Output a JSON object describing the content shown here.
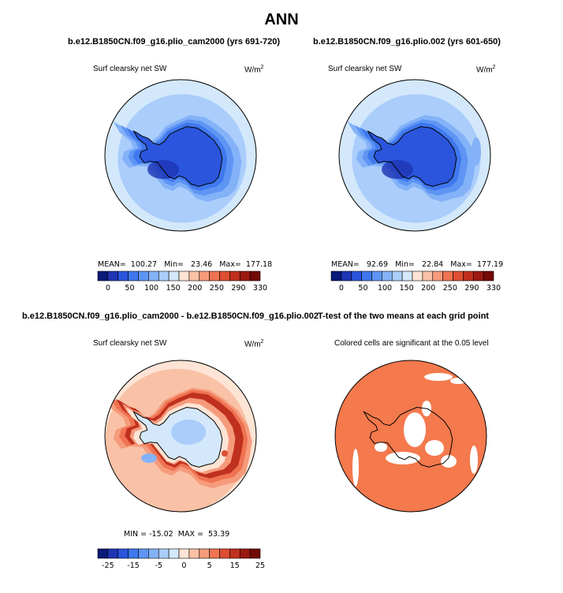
{
  "title": "ANN",
  "colors": {
    "ocean_outer": "#d3e8fb",
    "land_blue_dark": "#2a55dc",
    "significant": "#f4794d"
  },
  "panels": [
    {
      "title": "b.e12.B1850CN.f09_g16.plio_cam2000 (yrs 691-720)",
      "variable": "Surf clearsky net SW",
      "units_base": "W/m",
      "units_exp": "2",
      "stats": "MEAN=  100.27   Min=   23.46   Max=  177.18"
    },
    {
      "title": "b.e12.B1850CN.f09_g16.plio.002 (yrs 601-650)",
      "variable": "Surf clearsky net SW",
      "units_base": "W/m",
      "units_exp": "2",
      "stats": "MEAN=   92.69   Min=   22.84   Max=  177.19"
    },
    {
      "title": "b.e12.B1850CN.f09_g16.plio_cam2000 - b.e12.B1850CN.f09_g16.plio.002",
      "variable": "Surf clearsky net SW",
      "units_base": "W/m",
      "units_exp": "2",
      "stats": "MIN = -15.02  MAX =  53.39"
    },
    {
      "title": "T-test of the two means at each grid point",
      "variable": "Colored cells are significant at the 0.05 level"
    }
  ],
  "chart_data": [
    {
      "type": "heatmap",
      "title": "b.e12.B1850CN.f09_g16.plio_cam2000 (yrs 691-720)",
      "variable": "Surf clearsky net SW",
      "units": "W/m2",
      "mean": 100.27,
      "min": 23.46,
      "max": 177.18,
      "colorbar": {
        "ticks": [
          "0",
          "50",
          "100",
          "150",
          "200",
          "250",
          "290",
          "330"
        ],
        "colors": [
          "#0a1a78",
          "#1e35b4",
          "#2a55dc",
          "#3f78ee",
          "#5e95f4",
          "#84b2f8",
          "#aacdfb",
          "#d3e8fb",
          "#fde4d5",
          "#f9c1a6",
          "#f59b7c",
          "#ef7352",
          "#dd4e32",
          "#c0301e",
          "#9b1910",
          "#720a06"
        ]
      }
    },
    {
      "type": "heatmap",
      "title": "b.e12.B1850CN.f09_g16.plio.002 (yrs 601-650)",
      "variable": "Surf clearsky net SW",
      "units": "W/m2",
      "mean": 92.69,
      "min": 22.84,
      "max": 177.19,
      "colorbar": {
        "ticks": [
          "0",
          "50",
          "100",
          "150",
          "200",
          "250",
          "290",
          "330"
        ],
        "colors": [
          "#0a1a78",
          "#1e35b4",
          "#2a55dc",
          "#3f78ee",
          "#5e95f4",
          "#84b2f8",
          "#aacdfb",
          "#d3e8fb",
          "#fde4d5",
          "#f9c1a6",
          "#f59b7c",
          "#ef7352",
          "#dd4e32",
          "#c0301e",
          "#9b1910",
          "#720a06"
        ]
      }
    },
    {
      "type": "heatmap",
      "title": "b.e12.B1850CN.f09_g16.plio_cam2000 - b.e12.B1850CN.f09_g16.plio.002",
      "variable": "Surf clearsky net SW",
      "units": "W/m2",
      "min": -15.02,
      "max": 53.39,
      "colorbar": {
        "ticks": [
          "-25",
          "-15",
          "-5",
          "0",
          "5",
          "15",
          "25"
        ],
        "colors": [
          "#0a1a78",
          "#1e35b4",
          "#2a55dc",
          "#3f78ee",
          "#5e95f4",
          "#84b2f8",
          "#aacdfb",
          "#d3e8fb",
          "#fde4d5",
          "#f9c1a6",
          "#f59b7c",
          "#ef7352",
          "#dd4e32",
          "#c0301e",
          "#9b1910",
          "#720a06"
        ]
      }
    },
    {
      "type": "heatmap",
      "title": "T-test of the two means at each grid point",
      "variable": "Colored cells are significant at the 0.05 level",
      "significance_level": 0.05
    }
  ]
}
